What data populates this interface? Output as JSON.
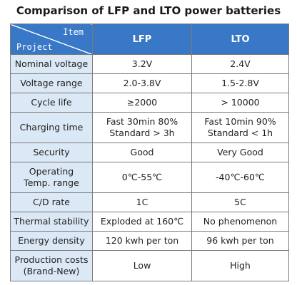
{
  "title": "Comparison of LFP and LTO power batteries",
  "header": {
    "item": "Item",
    "project": "Project",
    "lfp": "LFP",
    "lto": "LTO"
  },
  "rows": [
    {
      "label": [
        "Nominal voltage"
      ],
      "lfp": [
        "3.2V"
      ],
      "lto": [
        "2.4V"
      ]
    },
    {
      "label": [
        "Voltage range"
      ],
      "lfp": [
        "2.0-3.8V"
      ],
      "lto": [
        "1.5-2.8V"
      ]
    },
    {
      "label": [
        "Cycle life"
      ],
      "lfp": [
        "≥2000"
      ],
      "lto": [
        "> 10000"
      ]
    },
    {
      "label": [
        "Charging time"
      ],
      "lfp": [
        "Fast 30min 80%",
        "Standard > 3h"
      ],
      "lto": [
        "Fast 10min 90%",
        "Standard < 1h"
      ]
    },
    {
      "label": [
        "Security"
      ],
      "lfp": [
        "Good"
      ],
      "lto": [
        "Very Good"
      ]
    },
    {
      "label": [
        "Operating",
        "Temp. range"
      ],
      "lfp": [
        "0℃-55℃"
      ],
      "lto": [
        "-40℃-60℃"
      ]
    },
    {
      "label": [
        "C/D rate"
      ],
      "lfp": [
        "1C"
      ],
      "lto": [
        "5C"
      ]
    },
    {
      "label": [
        "Thermal stability"
      ],
      "lfp": [
        "Exploded at 160℃"
      ],
      "lto": [
        "No phenomenon"
      ]
    },
    {
      "label": [
        "Energy density"
      ],
      "lfp": [
        "120 kwh per ton"
      ],
      "lto": [
        "96 kwh per ton"
      ]
    },
    {
      "label": [
        "Production costs",
        "(Brand-New)"
      ],
      "lfp": [
        "Low"
      ],
      "lto": [
        "High"
      ]
    }
  ],
  "colors": {
    "header_bg": "#3878c7",
    "label_bg": "#dbe8f5",
    "border": "#7a7a7a"
  }
}
